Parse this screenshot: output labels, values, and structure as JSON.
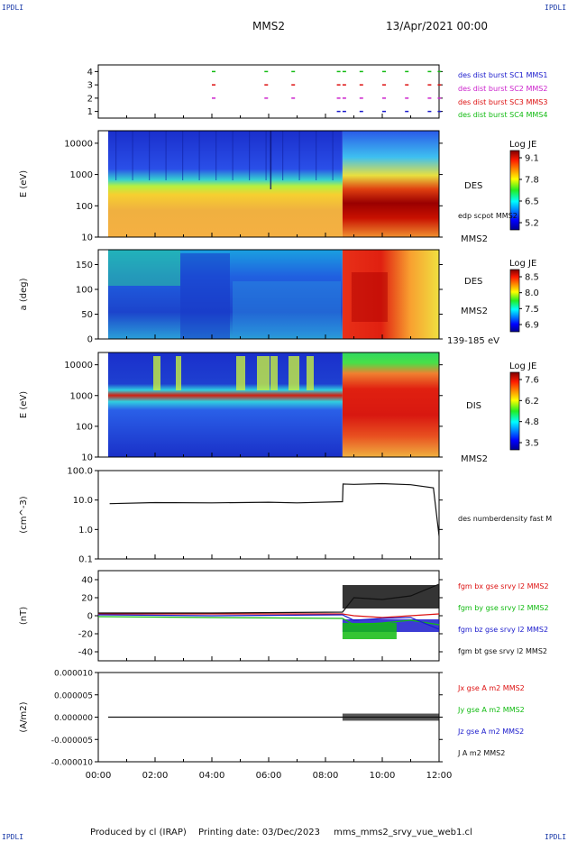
{
  "corner_labels": {
    "tl": "IPDLI",
    "tr": "IPDLI",
    "bl": "IPDLI",
    "br": "IPDLI"
  },
  "header": {
    "spacecraft": "MMS2",
    "date": "13/Apr/2021 00:00"
  },
  "footer": {
    "produced": "Produced by cl (IRAP)",
    "printing": "Printing date: 03/Dec/2023",
    "file": "mms_mms2_srvy_vue_web1.cl"
  },
  "colors": {
    "mms1": "#1a1acc",
    "mms2": "#cc22cc",
    "mms3": "#dd1111",
    "mms4": "#11bb11",
    "bx": "#dd1111",
    "by": "#11bb11",
    "bz": "#1a1acc",
    "bt": "#111111"
  },
  "chart_data": [
    {
      "type": "scatter",
      "name_key": "burst",
      "x_range_hours": [
        0,
        12
      ],
      "yticks": [
        "1",
        "2",
        "3",
        "4"
      ],
      "ylim": [
        0.5,
        4.5
      ],
      "legend": [
        {
          "label": "des dist burst SC1 MMS1",
          "color": "#1a1acc"
        },
        {
          "label": "des dist burst SC2 MMS2",
          "color": "#cc22cc"
        },
        {
          "label": "des dist burst SC3 MMS3",
          "color": "#dd1111"
        },
        {
          "label": "des dist burst SC4 MMS4",
          "color": "#11bb11"
        }
      ],
      "segments_hours": [
        4.0,
        5.85,
        6.8,
        8.4,
        8.6,
        9.2,
        10.0,
        10.8,
        11.6,
        11.95
      ]
    },
    {
      "type": "heatmap",
      "ylabel": "E (eV)",
      "yticks": [
        "10",
        "100",
        "1000",
        "10000"
      ],
      "ylim_log": [
        1,
        4.4
      ],
      "colorbar": {
        "title": "Log JE",
        "ticks": [
          "9.1",
          "7.8",
          "6.5",
          "5.2"
        ],
        "range": [
          5.2,
          9.1
        ]
      },
      "right_labels": [
        "DES",
        "edp scpot MMS2",
        "MMS2"
      ]
    },
    {
      "type": "heatmap",
      "ylabel": "a (deg)",
      "yticks": [
        "0",
        "50",
        "100",
        "150"
      ],
      "ylim": [
        0,
        180
      ],
      "colorbar": {
        "title": "Log JE",
        "ticks": [
          "8.5",
          "8.0",
          "7.5",
          "6.9"
        ],
        "range": [
          6.9,
          8.5
        ]
      },
      "right_labels": [
        "DES",
        "MMS2",
        "139-185 eV"
      ]
    },
    {
      "type": "heatmap",
      "ylabel": "E (eV)",
      "yticks": [
        "10",
        "100",
        "1000",
        "10000"
      ],
      "ylim_log": [
        1,
        4.4
      ],
      "colorbar": {
        "title": "Log JE",
        "ticks": [
          "7.6",
          "6.2",
          "4.8",
          "3.5"
        ],
        "range": [
          3.5,
          7.6
        ]
      },
      "right_labels": [
        "DIS",
        "MMS2"
      ]
    },
    {
      "type": "line",
      "ylabel": "(cm^-3)",
      "yticks": [
        "0.1",
        "1.0",
        "10.0",
        "100.0"
      ],
      "ylim_log": [
        -1,
        2
      ],
      "legend": [
        {
          "label": "des numberdensity fast M",
          "color": "#111111"
        }
      ],
      "series": [
        {
          "x": [
            0.4,
            2,
            4,
            6,
            7,
            8.6,
            8.62,
            9,
            10,
            11,
            11.8,
            12
          ],
          "y": [
            7.5,
            8.2,
            8,
            8.4,
            8,
            8.8,
            35,
            34,
            36,
            33,
            26,
            0.6
          ]
        }
      ]
    },
    {
      "type": "line",
      "ylabel": "(nT)",
      "yticks": [
        "-40",
        "-20",
        "0",
        "20",
        "40"
      ],
      "ylim": [
        -50,
        50
      ],
      "legend": [
        {
          "label": "fgm bx gse srvy l2 MMS2",
          "color": "#dd1111"
        },
        {
          "label": "fgm by gse srvy l2 MMS2",
          "color": "#11bb11"
        },
        {
          "label": "fgm bz gse srvy l2 MMS2",
          "color": "#1a1acc"
        },
        {
          "label": "fgm bt gse srvy l2 MMS2",
          "color": "#111111"
        }
      ],
      "series": [
        {
          "x": [
            0,
            4,
            8.6,
            9,
            10,
            11,
            12
          ],
          "y": [
            2,
            2,
            2,
            0,
            -2,
            0,
            2
          ]
        },
        {
          "x": [
            0,
            4,
            8.6,
            9,
            10,
            11,
            12
          ],
          "y": [
            -1,
            -2,
            -3,
            -10,
            -8,
            -5,
            -10
          ]
        },
        {
          "x": [
            0,
            4,
            8.6,
            9,
            10,
            11,
            12
          ],
          "y": [
            1,
            0,
            1,
            -5,
            -3,
            -2,
            -15
          ]
        },
        {
          "x": [
            0,
            4,
            8.6,
            9,
            10,
            11,
            12
          ],
          "y": [
            3,
            3,
            4,
            20,
            18,
            22,
            35
          ]
        }
      ]
    },
    {
      "type": "line",
      "ylabel": "(A/m2)",
      "yticks": [
        "-0.000010",
        "-0.000005",
        "0.000000",
        "0.000005",
        "0.000010"
      ],
      "ylim": [
        -1e-05,
        1e-05
      ],
      "legend": [
        {
          "label": "Jx gse A m2 MMS2",
          "color": "#dd1111"
        },
        {
          "label": "Jy gse A m2 MMS2",
          "color": "#11bb11"
        },
        {
          "label": "Jz gse A m2 MMS2",
          "color": "#1a1acc"
        },
        {
          "label": "J A m2 MMS2",
          "color": "#111111"
        }
      ]
    }
  ],
  "xaxis": {
    "ticks": [
      "00:00",
      "02:00",
      "04:00",
      "06:00",
      "08:00",
      "10:00",
      "12:00"
    ],
    "range_hours": [
      0,
      12
    ]
  }
}
